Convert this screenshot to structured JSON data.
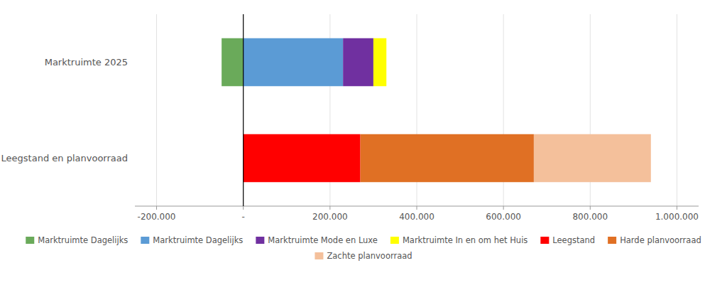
{
  "chart_data": {
    "type": "bar",
    "orientation": "horizontal",
    "stacked": true,
    "categories": [
      "Marktruimte 2025",
      "Leegstand en planvoorraad"
    ],
    "series": [
      {
        "name": "Marktruimte Dagelijks",
        "color": "#6aaa5a",
        "values": [
          -50000,
          null
        ]
      },
      {
        "name": "Marktruimte Dagelijks",
        "color": "#5b9bd5",
        "values": [
          230000,
          null
        ]
      },
      {
        "name": "Marktruimte Mode en Luxe",
        "color": "#7030a0",
        "values": [
          70000,
          null
        ]
      },
      {
        "name": "Marktruimte In en om het Huis",
        "color": "#ffff00",
        "values": [
          30000,
          null
        ]
      },
      {
        "name": "Leegstand",
        "color": "#ff0000",
        "values": [
          null,
          270000
        ]
      },
      {
        "name": "Harde planvoorraad",
        "color": "#e07024",
        "values": [
          null,
          400000
        ]
      },
      {
        "name": "Zachte planvoorraad",
        "color": "#f4c09b",
        "values": [
          null,
          270000
        ]
      }
    ],
    "xlim": [
      -250000,
      1050000
    ],
    "xticks": [
      {
        "value": -200000,
        "label": "-200.000"
      },
      {
        "value": 0,
        "label": "-"
      },
      {
        "value": 200000,
        "label": "200.000"
      },
      {
        "value": 400000,
        "label": "400.000"
      },
      {
        "value": 600000,
        "label": "600.000"
      },
      {
        "value": 800000,
        "label": "800.000"
      },
      {
        "value": 1000000,
        "label": "1.000.000"
      }
    ],
    "grid": true,
    "legend": "bottom"
  }
}
